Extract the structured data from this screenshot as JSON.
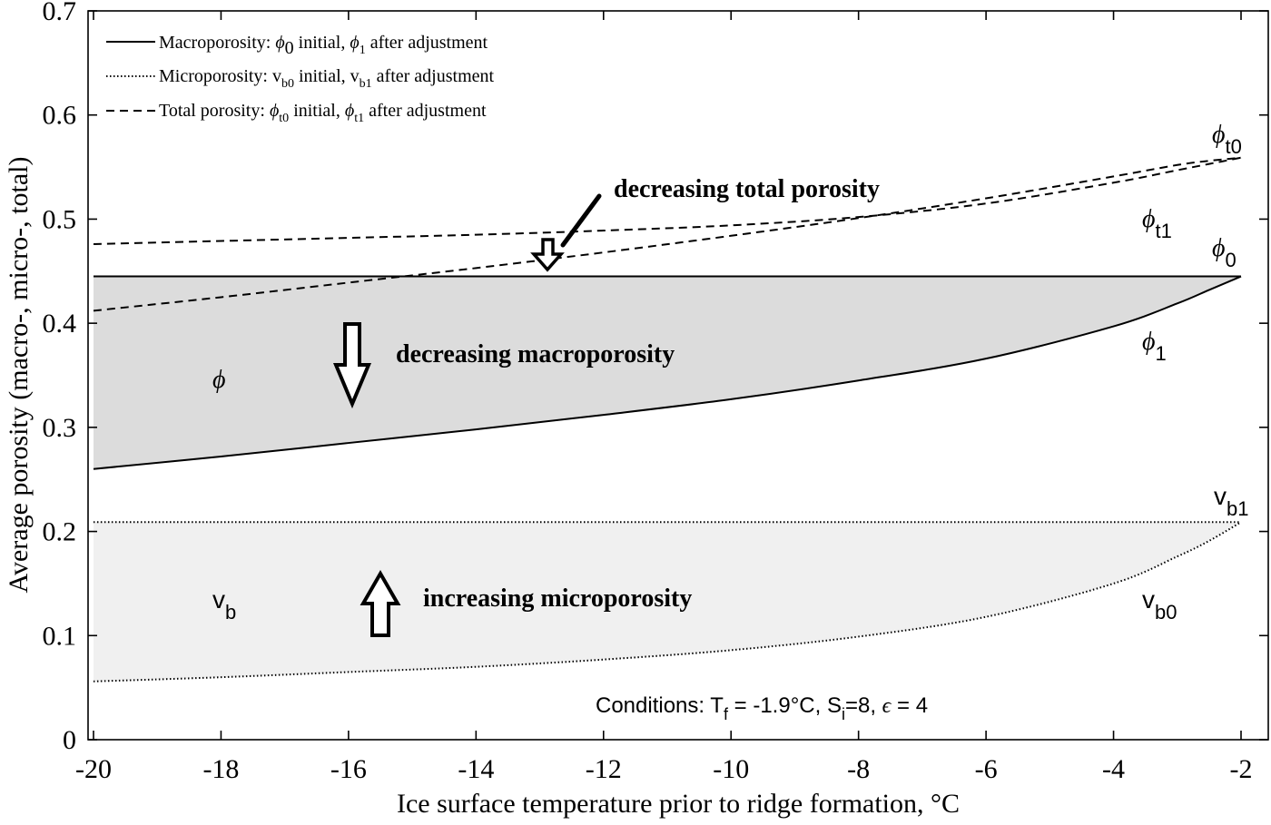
{
  "chart_data": {
    "type": "line",
    "xlabel": "Ice surface temperature prior to ridge formation, °C",
    "ylabel": "Average porosity (macro-, micro-, total)",
    "xlim": [
      -20,
      -2
    ],
    "ylim": [
      0,
      0.7
    ],
    "x_ticks": [
      "-20",
      "-18",
      "-16",
      "-14",
      "-12",
      "-10",
      "-8",
      "-6",
      "-4",
      "-2"
    ],
    "y_ticks": [
      "0",
      "0.1",
      "0.2",
      "0.3",
      "0.4",
      "0.5",
      "0.6",
      "0.7"
    ],
    "grid": false,
    "legend_position": "top-left",
    "x": [
      -20,
      -18,
      -16,
      -14,
      -12,
      -10,
      -8,
      -6,
      -4,
      -3,
      -2.5,
      -2
    ],
    "series": [
      {
        "name": "phi0",
        "style": "solid",
        "values": [
          0.445,
          0.445,
          0.445,
          0.445,
          0.445,
          0.445,
          0.445,
          0.445,
          0.445,
          0.445,
          0.445,
          0.445
        ]
      },
      {
        "name": "phi1",
        "style": "solid",
        "values": [
          0.26,
          0.272,
          0.285,
          0.298,
          0.312,
          0.327,
          0.345,
          0.366,
          0.397,
          0.419,
          0.432,
          0.445
        ]
      },
      {
        "name": "vb1",
        "style": "dotted",
        "values": [
          0.209,
          0.209,
          0.209,
          0.209,
          0.209,
          0.209,
          0.209,
          0.209,
          0.209,
          0.209,
          0.209,
          0.209
        ]
      },
      {
        "name": "vb0",
        "style": "dotted",
        "values": [
          0.056,
          0.06,
          0.065,
          0.07,
          0.077,
          0.086,
          0.099,
          0.118,
          0.15,
          0.176,
          0.191,
          0.209
        ]
      },
      {
        "name": "phit0",
        "style": "dashed",
        "values": [
          0.476,
          0.479,
          0.482,
          0.485,
          0.489,
          0.494,
          0.502,
          0.515,
          0.535,
          0.547,
          0.553,
          0.559
        ]
      },
      {
        "name": "phit1",
        "style": "dashed",
        "values": [
          0.412,
          0.425,
          0.439,
          0.453,
          0.468,
          0.484,
          0.501,
          0.52,
          0.541,
          0.552,
          0.556,
          0.559
        ]
      }
    ],
    "shaded_regions": [
      {
        "between": [
          "phi0",
          "phi1"
        ],
        "color": "#dcdcdc"
      },
      {
        "between": [
          "vb1",
          "vb0"
        ],
        "color": "#f0f0f0"
      }
    ],
    "legend": [
      {
        "style": "solid",
        "text": "Macroporosity: ϕ₀ initial, ϕ₁ after adjustment"
      },
      {
        "style": "dotted",
        "text": "Microporosity: vᵦ₀ initial, vᵦ₁ after adjustment"
      },
      {
        "style": "dashed",
        "text": "Total porosity: ϕₜ₀ initial, ϕₜ₁ after adjustment"
      }
    ],
    "annotations": {
      "total": "decreasing total porosity",
      "macro": "decreasing macroporosity",
      "micro": "increasing microporosity",
      "phi_region": "ϕ",
      "vb_main": "v",
      "vb_sub": "b",
      "conditions": "Conditions: Tᶠ = -1.9°C, Sᵢ=8, ϵ = 4"
    }
  }
}
